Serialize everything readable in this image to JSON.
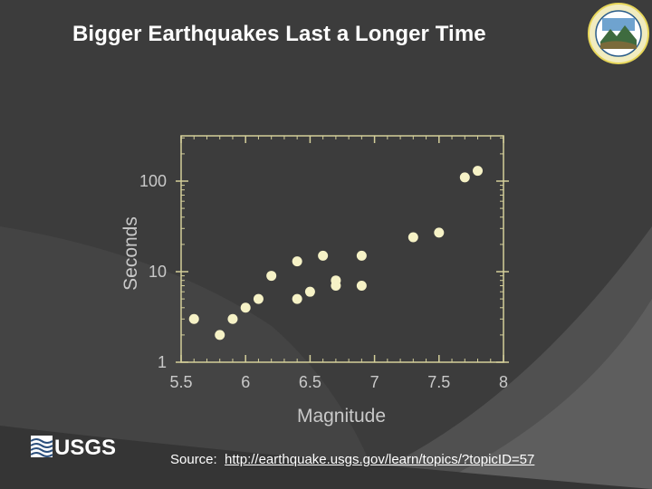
{
  "slide": {
    "title": "Bigger Earthquakes Last a Longer Time",
    "source_label": "Source:",
    "source_url": "http://earthquake.usgs.gov/learn/topics/?topicID=57",
    "logo_text": "USGS"
  },
  "colors": {
    "background": "#3c3c3c",
    "plot_frame": "#d4cf9a",
    "point_fill": "#f6f2c6",
    "text": "#ffffff",
    "axis_text": "#c9c9c9"
  },
  "chart_data": {
    "type": "scatter",
    "title": "",
    "xlabel": "Magnitude",
    "ylabel": "Seconds",
    "xlim": [
      5.5,
      8
    ],
    "ylim": [
      1,
      300
    ],
    "yscale": "log",
    "xticks": [
      5.5,
      6,
      6.5,
      7,
      7.5,
      8
    ],
    "xtick_labels": [
      "5.5",
      "6",
      "6.5",
      "7",
      "7.5",
      "8"
    ],
    "yticks": [
      1,
      10,
      100
    ],
    "ytick_labels": [
      "1",
      "10",
      "100"
    ],
    "grid": false,
    "points": [
      {
        "x": 5.6,
        "y": 3
      },
      {
        "x": 5.8,
        "y": 2
      },
      {
        "x": 5.9,
        "y": 3
      },
      {
        "x": 6.0,
        "y": 4
      },
      {
        "x": 6.1,
        "y": 5
      },
      {
        "x": 6.2,
        "y": 9
      },
      {
        "x": 6.4,
        "y": 5
      },
      {
        "x": 6.4,
        "y": 13
      },
      {
        "x": 6.5,
        "y": 6
      },
      {
        "x": 6.6,
        "y": 15
      },
      {
        "x": 6.7,
        "y": 8
      },
      {
        "x": 6.7,
        "y": 7
      },
      {
        "x": 6.9,
        "y": 7
      },
      {
        "x": 6.9,
        "y": 15
      },
      {
        "x": 7.3,
        "y": 24
      },
      {
        "x": 7.5,
        "y": 27
      },
      {
        "x": 7.7,
        "y": 110
      },
      {
        "x": 7.8,
        "y": 130
      }
    ]
  }
}
